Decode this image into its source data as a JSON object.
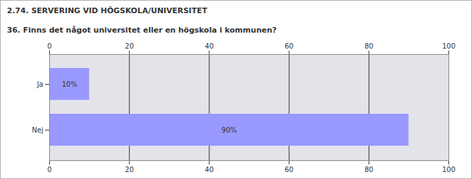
{
  "chart_data": {
    "type": "bar",
    "orientation": "horizontal",
    "title": "2.74. SERVERING VID HÖGSKOLA/UNIVERSITET",
    "subtitle": "36. Finns det något universitet eller en högskola i kommunen?",
    "categories": [
      "Ja",
      "Nej"
    ],
    "values": [
      10,
      90
    ],
    "value_labels": [
      "10%",
      "90%"
    ],
    "data_labels": true,
    "color": "#9999ff",
    "xlim": [
      0,
      100
    ],
    "xticks": [
      0,
      20,
      40,
      60,
      80,
      100
    ],
    "grid": true
  }
}
